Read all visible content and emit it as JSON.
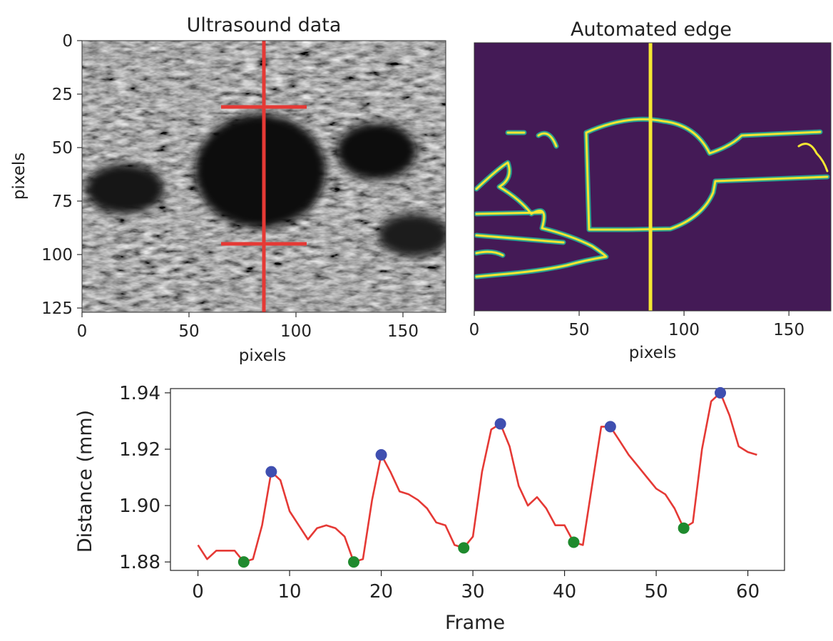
{
  "chart_data": [
    {
      "type": "image",
      "title": "Ultrasound data",
      "xlabel": "pixels",
      "ylabel": "pixels",
      "xlim": [
        0,
        170
      ],
      "ylim": [
        127,
        0
      ],
      "xticks": [
        0,
        50,
        100,
        150
      ],
      "yticks": [
        0,
        25,
        50,
        75,
        100,
        125
      ],
      "colormap": "gray",
      "overlay": {
        "color": "#e53935",
        "vertical_line_x": 85,
        "top_marker": {
          "y": 31,
          "x_range": [
            65,
            105
          ]
        },
        "bottom_marker": {
          "y": 95,
          "x_range": [
            65,
            105
          ]
        }
      }
    },
    {
      "type": "image",
      "title": "Automated edge",
      "xlabel": "pixels",
      "xlim": [
        0,
        170
      ],
      "xticks": [
        0,
        50,
        100,
        150
      ],
      "colormap": "viridis",
      "overlay": {
        "color": "#f5e733",
        "vertical_line_x": 84
      }
    },
    {
      "type": "line",
      "xlabel": "Frame",
      "ylabel": "Distance (mm)",
      "xlim": [
        -3,
        64
      ],
      "ylim": [
        1.877,
        1.9415
      ],
      "xticks": [
        0,
        10,
        20,
        30,
        40,
        50,
        60
      ],
      "yticks": [
        "1.88",
        "1.90",
        "1.92",
        "1.94"
      ],
      "series": [
        {
          "color": "#e53935",
          "x": [
            0,
            1,
            2,
            3,
            4,
            5,
            6,
            7,
            8,
            9,
            10,
            11,
            12,
            13,
            14,
            15,
            16,
            17,
            18,
            19,
            20,
            21,
            22,
            23,
            24,
            25,
            26,
            27,
            28,
            29,
            30,
            31,
            32,
            33,
            34,
            35,
            36,
            37,
            38,
            39,
            40,
            41,
            42,
            43,
            44,
            45,
            46,
            47,
            48,
            49,
            50,
            51,
            52,
            53,
            54,
            55,
            56,
            57,
            58,
            59,
            60,
            61
          ],
          "values": [
            1.886,
            1.881,
            1.884,
            1.884,
            1.884,
            1.88,
            1.881,
            1.893,
            1.912,
            1.909,
            1.898,
            1.893,
            1.888,
            1.892,
            1.893,
            1.892,
            1.889,
            1.88,
            1.881,
            1.902,
            1.918,
            1.912,
            1.905,
            1.904,
            1.902,
            1.899,
            1.894,
            1.893,
            1.886,
            1.885,
            1.889,
            1.912,
            1.927,
            1.929,
            1.921,
            1.907,
            1.9,
            1.903,
            1.899,
            1.893,
            1.893,
            1.887,
            1.886,
            1.907,
            1.928,
            1.928,
            1.923,
            1.918,
            1.914,
            1.91,
            1.906,
            1.904,
            1.899,
            1.892,
            1.894,
            1.92,
            1.937,
            1.94,
            1.932,
            1.921,
            1.919,
            1.918
          ]
        },
        {
          "color": "#3f4fb0",
          "marker": "peak",
          "x": [
            8,
            20,
            33,
            45,
            57
          ],
          "values": [
            1.912,
            1.918,
            1.929,
            1.928,
            1.94
          ]
        },
        {
          "color": "#1f8a2e",
          "marker": "trough",
          "x": [
            5,
            17,
            29,
            41,
            53
          ],
          "values": [
            1.88,
            1.88,
            1.885,
            1.887,
            1.892
          ]
        }
      ]
    }
  ]
}
